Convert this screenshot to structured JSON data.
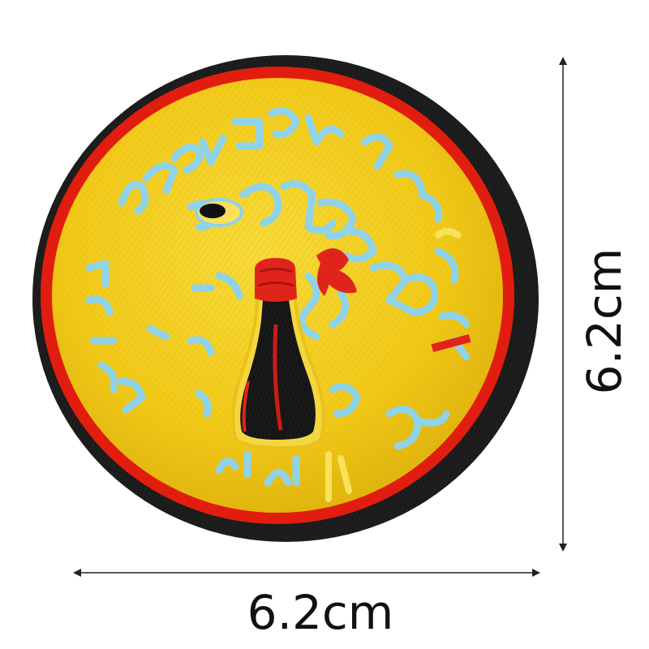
{
  "product": {
    "width_label": "6.2cm",
    "height_label": "6.2cm"
  },
  "colors": {
    "background": "#ffffff",
    "border_black": "#1a1a1a",
    "border_red": "#e11d0f",
    "field_yellow": "#f4cf1e",
    "embroidery_blue": "#8fd3ea",
    "bottle_black": "#151515",
    "accent_red": "#e0241b"
  },
  "patch": {
    "description_icon": "soy-sauce-bottle-icon"
  }
}
